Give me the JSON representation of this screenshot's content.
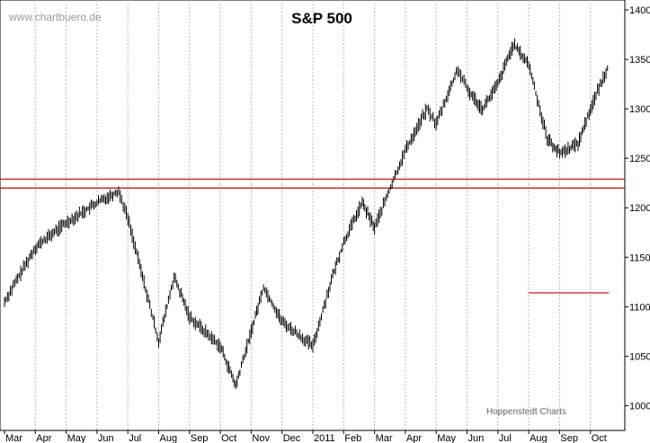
{
  "watermark": "www.chartbuero.de",
  "credit": "Hoppenstedt Charts",
  "chart_data": {
    "type": "line",
    "title": "S&P 500",
    "xlabel": "",
    "ylabel": "",
    "ylim": [
      975,
      1410
    ],
    "y_axis_side": "right",
    "y_ticks": [
      1000,
      1050,
      1100,
      1150,
      1200,
      1250,
      1300,
      1350,
      1400
    ],
    "grid": "vertical dashed at month starts",
    "month_labels": [
      "Mar",
      "Apr",
      "May",
      "Jun",
      "Jul",
      "Aug",
      "Sep",
      "Oct",
      "Nov",
      "Dec",
      "2011",
      "Feb",
      "Mar",
      "Apr",
      "May",
      "Jun",
      "Jul",
      "Aug",
      "Sep",
      "Oct"
    ],
    "series": [
      {
        "color": "#000000",
        "x": [
          0,
          1,
          2,
          3,
          3.7,
          4,
          5,
          5.5,
          6,
          7,
          7.5,
          8,
          8.4,
          9,
          10,
          10.6,
          11,
          11.6,
          12,
          13,
          13.7,
          14,
          14.7,
          15,
          15.5,
          16,
          16.5,
          17,
          17.6,
          18,
          18.6,
          19,
          19.6
        ],
        "y": [
          1105,
          1160,
          1185,
          1205,
          1217,
          1190,
          1065,
          1130,
          1090,
          1060,
          1020,
          1075,
          1120,
          1085,
          1060,
          1127,
          1165,
          1205,
          1180,
          1258,
          1300,
          1285,
          1340,
          1320,
          1300,
          1325,
          1365,
          1345,
          1270,
          1255,
          1265,
          1300,
          1345
        ]
      }
    ],
    "reference_lines": [
      {
        "y": 1229,
        "color": "#cc0000"
      },
      {
        "y": 1220,
        "color": "#cc0000"
      },
      {
        "y": 1114,
        "x_start": 17.0,
        "x_end": 19.6,
        "color": "#cc0000"
      }
    ]
  }
}
